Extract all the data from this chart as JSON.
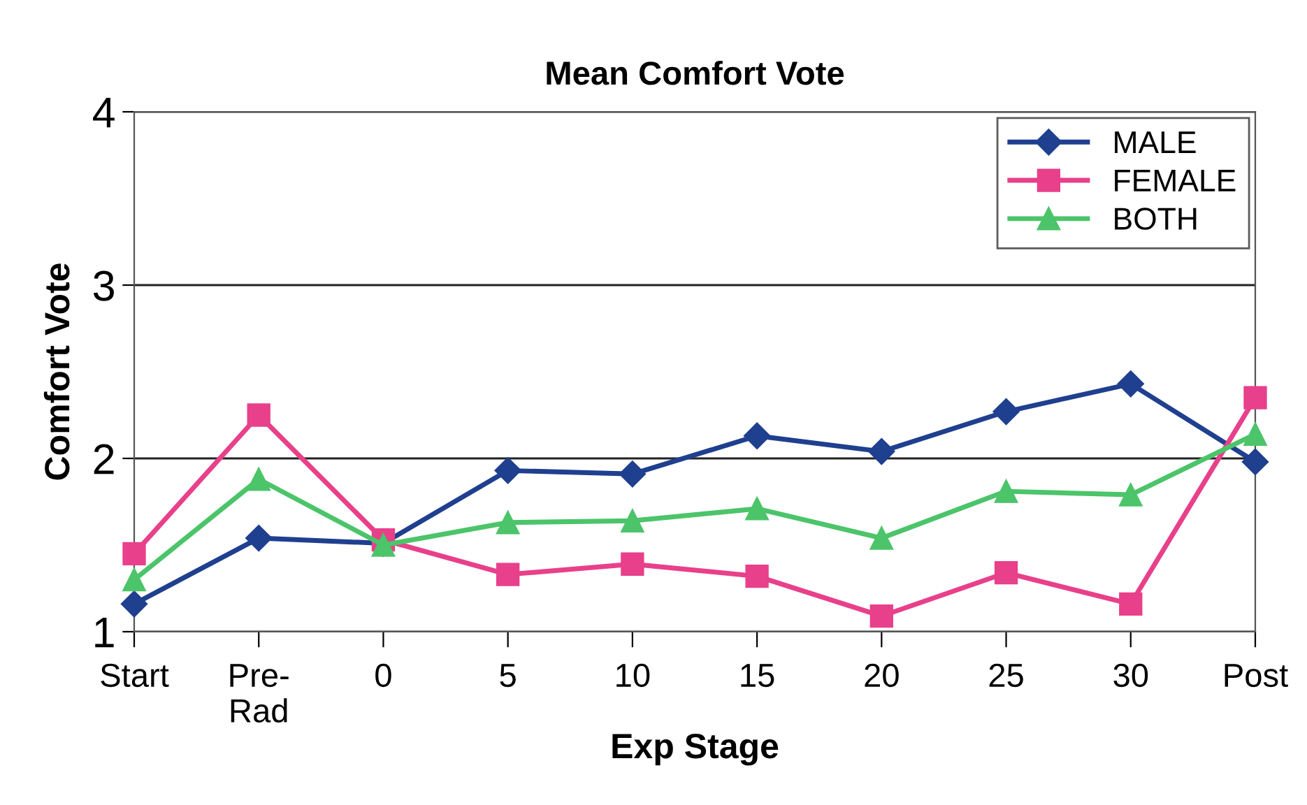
{
  "chart_data": {
    "type": "line",
    "title": "Mean Comfort Vote",
    "xlabel": "Exp Stage",
    "ylabel": "Comfort Vote",
    "categories": [
      "Start",
      "Pre-\nRad",
      "0",
      "5",
      "10",
      "15",
      "20",
      "25",
      "30",
      "Post"
    ],
    "series": [
      {
        "name": "MALE",
        "color": "#1f3f8f",
        "marker": "diamond",
        "values": [
          1.16,
          1.54,
          1.51,
          1.93,
          1.91,
          2.13,
          2.04,
          2.27,
          2.43,
          1.98
        ]
      },
      {
        "name": "FEMALE",
        "color": "#e8408a",
        "marker": "square",
        "values": [
          1.45,
          2.25,
          1.53,
          1.33,
          1.39,
          1.32,
          1.09,
          1.34,
          1.16,
          2.35
        ]
      },
      {
        "name": "BOTH",
        "color": "#4cc46a",
        "marker": "triangle",
        "values": [
          1.3,
          1.88,
          1.5,
          1.63,
          1.64,
          1.71,
          1.54,
          1.81,
          1.79,
          2.14
        ]
      }
    ],
    "ylim": [
      1,
      4
    ],
    "yticks": [
      1,
      2,
      3,
      4
    ],
    "grid": "y",
    "legend": "top right",
    "line_style": "solid"
  }
}
